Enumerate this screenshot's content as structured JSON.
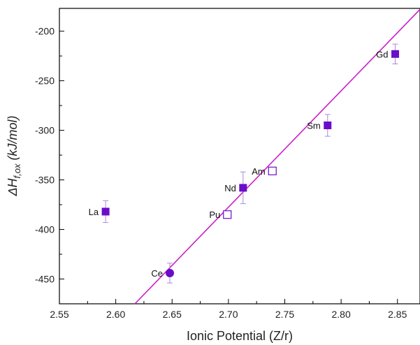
{
  "chart_data": {
    "type": "scatter",
    "title": "",
    "xlabel": "Ionic Potential (Z/r)",
    "ylabel_main": "ΔH",
    "ylabel_sub": "f,ox",
    "ylabel_unit": " (kJ/mol)",
    "xlim": [
      2.55,
      2.87
    ],
    "ylim": [
      -475,
      -177
    ],
    "x_ticks": [
      "2.55",
      "2.60",
      "2.65",
      "2.70",
      "2.75",
      "2.80",
      "2.85"
    ],
    "x_tick_values": [
      2.55,
      2.6,
      2.65,
      2.7,
      2.75,
      2.8,
      2.85
    ],
    "y_ticks": [
      "-200",
      "-250",
      "-300",
      "-350",
      "-400",
      "-450"
    ],
    "y_tick_values": [
      -200,
      -250,
      -300,
      -350,
      -400,
      -450
    ],
    "grid": false,
    "marker_color": "#6a0dc8",
    "line_color": "#c81ec8",
    "error_color": "#a98ad8",
    "points": [
      {
        "label": "La",
        "x": 2.591,
        "y": -382,
        "err": 11,
        "marker": "square-filled"
      },
      {
        "label": "Ce",
        "x": 2.648,
        "y": -444,
        "err": 10,
        "marker": "circle-filled"
      },
      {
        "label": "Pu",
        "x": 2.699,
        "y": -385,
        "err": 0,
        "marker": "square-open"
      },
      {
        "label": "Nd",
        "x": 2.713,
        "y": -358,
        "err": 16,
        "marker": "square-filled"
      },
      {
        "label": "Am",
        "x": 2.739,
        "y": -341,
        "err": 0,
        "marker": "square-open"
      },
      {
        "label": "Sm",
        "x": 2.788,
        "y": -295,
        "err": 11,
        "marker": "square-filled"
      },
      {
        "label": "Gd",
        "x": 2.848,
        "y": -223,
        "err": 10,
        "marker": "square-filled"
      }
    ],
    "fit_line": {
      "x1": 2.617,
      "y1": -475,
      "x2": 2.87,
      "y2": -178
    }
  }
}
